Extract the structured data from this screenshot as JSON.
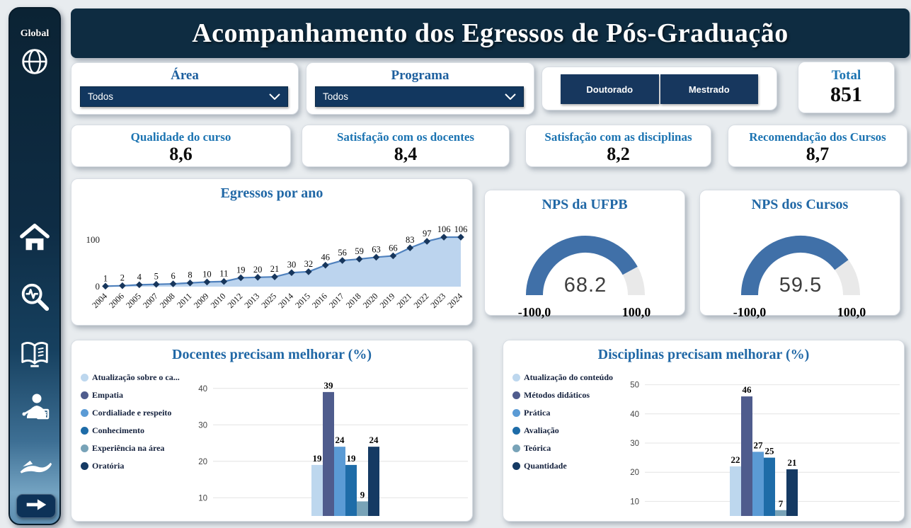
{
  "header": {
    "title": "Acompanhamento dos Egressos de Pós-Graduação"
  },
  "sidebar": {
    "logo_text": "Global",
    "icons": [
      "globe-icon",
      "home-icon",
      "search-analytics-icon",
      "open-book-icon",
      "teacher-icon",
      "hand-care-icon",
      "arrow-right-icon"
    ]
  },
  "filters": {
    "area": {
      "label": "Área",
      "value": "Todos"
    },
    "programa": {
      "label": "Programa",
      "value": "Todos"
    },
    "degree_buttons": [
      "Doutorado",
      "Mestrado"
    ],
    "total": {
      "label": "Total",
      "value": "851"
    }
  },
  "kpis": [
    {
      "label": "Qualidade do curso",
      "value": "8,6"
    },
    {
      "label": "Satisfação com os docentes",
      "value": "8,4"
    },
    {
      "label": "Satisfação com as disciplinas",
      "value": "8,2"
    },
    {
      "label": "Recomendação dos Cursos",
      "value": "8,7"
    }
  ],
  "chart_data": [
    {
      "id": "egressos_por_ano",
      "type": "area",
      "title": "Egressos por ano",
      "categories": [
        "2004",
        "2006",
        "2005",
        "2007",
        "2008",
        "2011",
        "2009",
        "2010",
        "2012",
        "2013",
        "2025",
        "2014",
        "2015",
        "2016",
        "2017",
        "2018",
        "2020",
        "2019",
        "2021",
        "2022",
        "2023",
        "2024"
      ],
      "values": [
        1,
        2,
        4,
        5,
        6,
        8,
        10,
        11,
        19,
        20,
        21,
        30,
        32,
        46,
        56,
        59,
        63,
        66,
        83,
        97,
        106,
        106
      ],
      "yticks": [
        0,
        100
      ],
      "ylim": [
        0,
        120
      ],
      "grid": false,
      "legend_position": "none"
    },
    {
      "id": "nps_ufpb",
      "type": "gauge",
      "title": "NPS da UFPB",
      "value": 68.2,
      "display_value": "68.2",
      "min": -100,
      "max": 100,
      "min_label": "-100,0",
      "max_label": "100,0"
    },
    {
      "id": "nps_cursos",
      "type": "gauge",
      "title": "NPS dos Cursos",
      "value": 59.5,
      "display_value": "59.5",
      "min": -100,
      "max": 100,
      "min_label": "-100,0",
      "max_label": "100,0"
    },
    {
      "id": "docentes_melhorar",
      "type": "bar",
      "title": "Docentes precisam melhorar (%)",
      "series": [
        {
          "name": "Atualização sobre o ca...",
          "value": 19,
          "color": "#BDD7EE"
        },
        {
          "name": "Empatia",
          "value": 39,
          "color": "#4F5C8D"
        },
        {
          "name": "Cordialiade e respeito",
          "value": 24,
          "color": "#5B9BD5"
        },
        {
          "name": "Conhecimento",
          "value": 19,
          "color": "#1E6CA8"
        },
        {
          "name": "Experiência na área",
          "value": 9,
          "color": "#78A3B8"
        },
        {
          "name": "Oratória",
          "value": 24,
          "color": "#153A63"
        }
      ],
      "yticks": [
        10,
        20,
        30,
        40
      ],
      "ymin": 5,
      "ymax": 45,
      "cluster_x": 171,
      "legend_position": "left",
      "grid": true
    },
    {
      "id": "disciplinas_melhorar",
      "type": "bar",
      "title": "Disciplinas precisam melhorar (%)",
      "series": [
        {
          "name": "Atualização do conteúdo",
          "value": 22,
          "color": "#BDD7EE"
        },
        {
          "name": "Métodos didáticos",
          "value": 46,
          "color": "#4F5C8D"
        },
        {
          "name": "Prática",
          "value": 27,
          "color": "#5B9BD5"
        },
        {
          "name": "Avaliação",
          "value": 25,
          "color": "#1E6CA8"
        },
        {
          "name": "Teórica",
          "value": 7,
          "color": "#78A3B8"
        },
        {
          "name": "Quantidade",
          "value": 21,
          "color": "#153A63"
        }
      ],
      "yticks": [
        10,
        20,
        30,
        40,
        50
      ],
      "ymin": 5,
      "ymax": 55,
      "cluster_x": 152,
      "legend_position": "left",
      "grid": true
    }
  ],
  "colors": {
    "navy": "#0E2C41",
    "dropdown_navy": "#12375F",
    "button_navy": "#17375E",
    "panel_title_blue": "#2168A6",
    "kpi_label_blue": "#1C74B2",
    "page_bg": "#E8ECEF",
    "gauge_fill": "#4070A8",
    "gauge_rest": "#E9E9E9",
    "line_blue": "#4F81BD",
    "area_fill": "#BCD4EE",
    "marker_navy": "#17365C",
    "value_black": "#0C0C0C"
  }
}
